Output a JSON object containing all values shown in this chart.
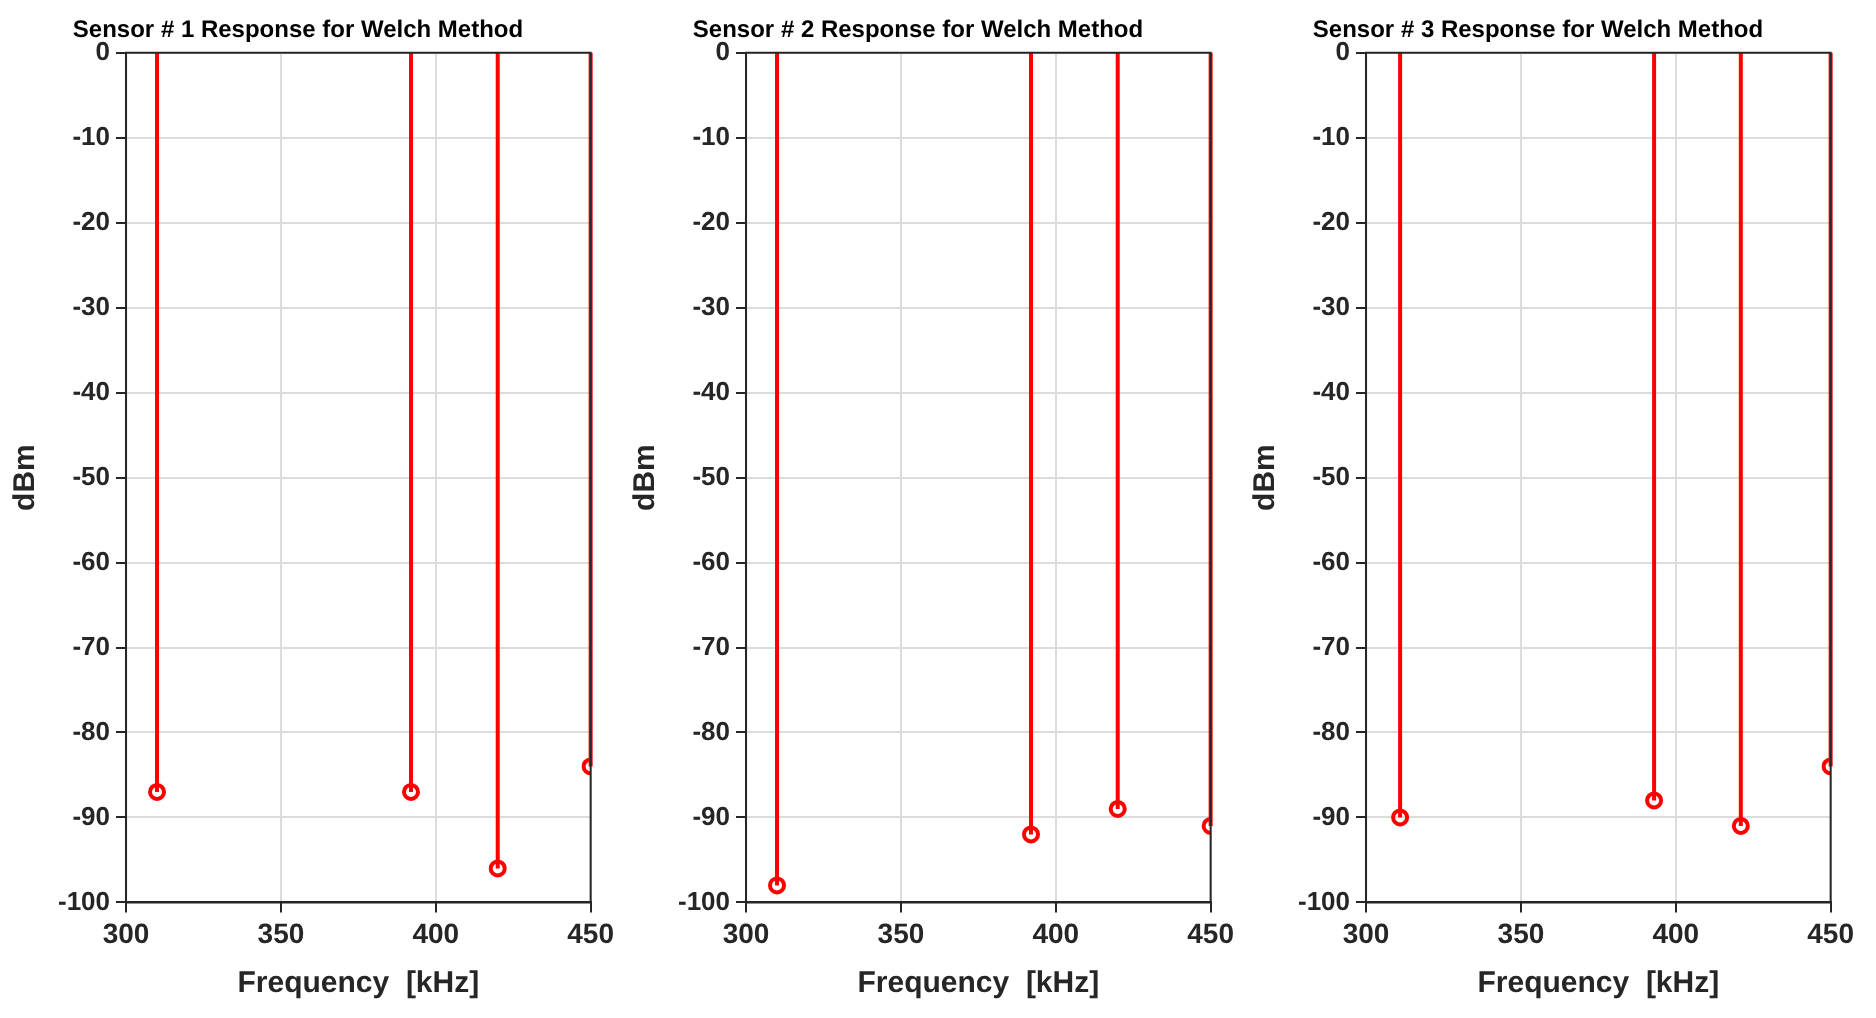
{
  "chart_data": [
    {
      "type": "lollipop",
      "title": "Sensor # 1 Response for Welch Method",
      "xlabel": "Frequency  [kHz]",
      "ylabel": "dBm",
      "x": [
        310,
        392,
        420,
        450
      ],
      "values": [
        -87,
        -87,
        -96,
        -84
      ],
      "color": "#ff0000",
      "xlim": [
        300,
        450
      ],
      "xticks": [
        300,
        350,
        400,
        450
      ],
      "ylim": [
        -100,
        0
      ],
      "yticks": [
        -100,
        -90,
        -80,
        -70,
        -60,
        -50,
        -40,
        -30,
        -20,
        -10,
        0
      ],
      "grid": true,
      "legend": false,
      "marker": "circle"
    },
    {
      "type": "lollipop",
      "title": "Sensor # 2 Response for Welch Method",
      "xlabel": "Frequency  [kHz]",
      "ylabel": "dBm",
      "x": [
        310,
        392,
        420,
        450
      ],
      "values": [
        -98,
        -92,
        -89,
        -91
      ],
      "color": "#ff0000",
      "xlim": [
        300,
        450
      ],
      "xticks": [
        300,
        350,
        400,
        450
      ],
      "ylim": [
        -100,
        0
      ],
      "yticks": [
        -100,
        -90,
        -80,
        -70,
        -60,
        -50,
        -40,
        -30,
        -20,
        -10,
        0
      ],
      "grid": true,
      "legend": false,
      "marker": "circle"
    },
    {
      "type": "lollipop",
      "title": "Sensor # 3 Response for Welch Method",
      "xlabel": "Frequency  [kHz]",
      "ylabel": "dBm",
      "x": [
        311,
        393,
        421,
        450
      ],
      "values": [
        -90,
        -88,
        -91,
        -84
      ],
      "color": "#ff0000",
      "xlim": [
        300,
        450
      ],
      "xticks": [
        300,
        350,
        400,
        450
      ],
      "ylim": [
        -100,
        0
      ],
      "yticks": [
        -100,
        -90,
        -80,
        -70,
        -60,
        -50,
        -40,
        -30,
        -20,
        -10,
        0
      ],
      "grid": true,
      "legend": false,
      "marker": "circle"
    }
  ]
}
